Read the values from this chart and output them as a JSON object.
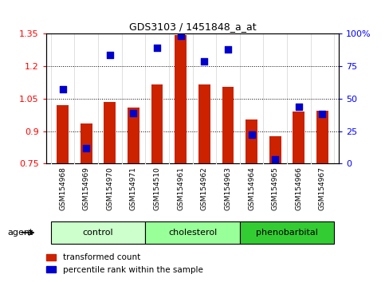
{
  "title": "GDS3103 / 1451848_a_at",
  "samples": [
    "GSM154968",
    "GSM154969",
    "GSM154970",
    "GSM154971",
    "GSM154510",
    "GSM154961",
    "GSM154962",
    "GSM154963",
    "GSM154964",
    "GSM154965",
    "GSM154966",
    "GSM154967"
  ],
  "red_values": [
    1.02,
    0.935,
    1.035,
    1.01,
    1.115,
    1.345,
    1.115,
    1.105,
    0.955,
    0.875,
    0.99,
    0.995
  ],
  "blue_values": [
    0.575,
    0.12,
    0.84,
    0.39,
    0.89,
    0.985,
    0.79,
    0.88,
    0.225,
    0.035,
    0.44,
    0.38
  ],
  "ylim_left": [
    0.75,
    1.35
  ],
  "ylim_right": [
    0,
    100
  ],
  "yticks_left": [
    0.75,
    0.9,
    1.05,
    1.2,
    1.35
  ],
  "yticks_right": [
    0,
    25,
    50,
    75,
    100
  ],
  "ytick_labels_left": [
    "0.75",
    "0.9",
    "1.05",
    "1.2",
    "1.35"
  ],
  "ytick_labels_right": [
    "0",
    "25",
    "50",
    "75",
    "100%"
  ],
  "groups": [
    {
      "label": "control",
      "start": 0,
      "end": 4,
      "color": "#ccffcc"
    },
    {
      "label": "cholesterol",
      "start": 4,
      "end": 8,
      "color": "#99ff99"
    },
    {
      "label": "phenobarbital",
      "start": 8,
      "end": 12,
      "color": "#33cc33"
    }
  ],
  "bar_color": "#cc2200",
  "dot_color": "#0000cc",
  "bar_width": 0.5,
  "dot_size": 35,
  "agent_label": "agent",
  "legend_red": "transformed count",
  "legend_blue": "percentile rank within the sample"
}
